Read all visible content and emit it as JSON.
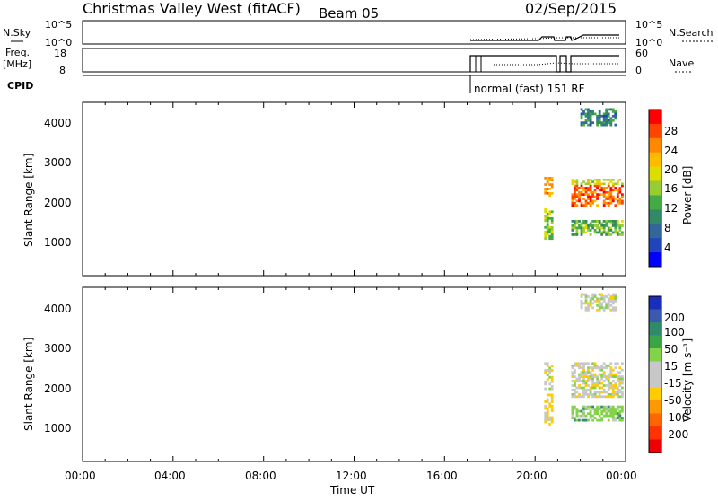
{
  "header": {
    "station": "Christmas Valley West (fitACF)",
    "beam": "Beam 05",
    "date": "02/Sep/2015"
  },
  "strip_panels": {
    "nsky": {
      "label": "N.Sky",
      "ticks": [
        "10^5",
        "10^0"
      ],
      "right_ticks": [
        "10^5",
        "10^0"
      ],
      "right_label": "N.Search"
    },
    "freq": {
      "label_line1": "Freq.",
      "label_line2": "[MHz]",
      "ticks": [
        "18",
        "8"
      ],
      "right_ticks": [
        "60",
        "0"
      ],
      "right_label": "Nave"
    },
    "cpid": {
      "label": "CPID",
      "annotation": "normal (fast) 151 RF"
    }
  },
  "power_panel": {
    "ylabel": "Slant Range [km]",
    "yticks": [
      "4000",
      "3000",
      "2000",
      "1000"
    ],
    "colorbar": {
      "label": "Power [dB]",
      "ticks": [
        "28",
        "24",
        "20",
        "16",
        "12",
        "8",
        "4"
      ],
      "colors": [
        "#ff0000",
        "#ff4400",
        "#ff8800",
        "#ffbb00",
        "#dddd00",
        "#99cc33",
        "#44aa44",
        "#338866",
        "#336699",
        "#2244bb",
        "#0000ff"
      ]
    }
  },
  "velocity_panel": {
    "ylabel": "Slant Range [km]",
    "yticks": [
      "4000",
      "3000",
      "2000",
      "1000"
    ],
    "colorbar": {
      "label": "Velocity [m s⁻¹]",
      "ticks": [
        "200",
        "100",
        "50",
        "15",
        "-15",
        "-50",
        "-100",
        "-200"
      ],
      "colors": [
        "#1a2dbb",
        "#3a5ab0",
        "#2e8a6a",
        "#39a547",
        "#84d24a",
        "#c8c8c8",
        "#c8c8c8",
        "#ffcc00",
        "#ff9900",
        "#ff6600",
        "#ff3300",
        "#ee0000"
      ]
    }
  },
  "xaxis": {
    "label": "Time UT",
    "ticks": [
      "00:00",
      "04:00",
      "08:00",
      "12:00",
      "16:00",
      "20:00",
      "00:00"
    ]
  },
  "chart_data": {
    "type": "heatmap",
    "title": "Christmas Valley West (fitACF) Beam 05 02/Sep/2015",
    "x_range_hours": [
      0,
      24
    ],
    "y_range_km": [
      180,
      4600
    ],
    "power_regions": [
      {
        "t0": 20.4,
        "t1": 20.8,
        "r0": 2200,
        "r1": 2700,
        "db": 24
      },
      {
        "t0": 20.4,
        "t1": 20.8,
        "r0": 1100,
        "r1": 1900,
        "db": 16
      },
      {
        "t0": 21.6,
        "t1": 23.9,
        "r0": 1950,
        "r1": 2500,
        "db": 26
      },
      {
        "t0": 21.6,
        "t1": 23.9,
        "r0": 2500,
        "r1": 2650,
        "db": 18
      },
      {
        "t0": 21.6,
        "t1": 23.9,
        "r0": 1200,
        "r1": 1600,
        "db": 14
      },
      {
        "t0": 22.0,
        "t1": 23.6,
        "r0": 4000,
        "r1": 4450,
        "db": 10
      }
    ],
    "velocity_regions": [
      {
        "t0": 20.4,
        "t1": 20.8,
        "r0": 2000,
        "r1": 2700,
        "v": 0
      },
      {
        "t0": 20.4,
        "t1": 20.8,
        "r0": 1100,
        "r1": 1900,
        "v": -20
      },
      {
        "t0": 21.6,
        "t1": 23.9,
        "r0": 1800,
        "r1": 2700,
        "v": 0
      },
      {
        "t0": 21.6,
        "t1": 23.9,
        "r0": 1200,
        "r1": 1600,
        "v": 30
      },
      {
        "t0": 22.0,
        "t1": 23.6,
        "r0": 4000,
        "r1": 4450,
        "v": 0
      }
    ]
  }
}
